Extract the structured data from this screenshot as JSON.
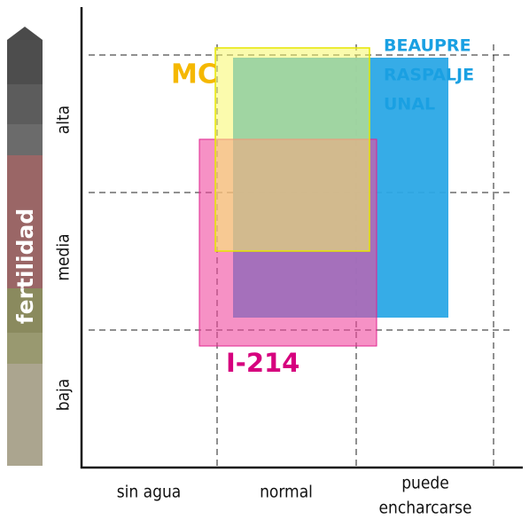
{
  "y_axis": {
    "title": "fertilidad",
    "labels": [
      "alta",
      "media",
      "baja"
    ]
  },
  "x_axis": {
    "labels": [
      [
        "sin agua"
      ],
      [
        "normal"
      ],
      [
        "puede",
        "encharcarse"
      ]
    ]
  },
  "regions": [
    {
      "label": [
        "BEAUPRE",
        "RASPALJE",
        "UNAL"
      ]
    },
    {
      "label": [
        "I-214"
      ]
    },
    {
      "label": [
        "MC"
      ]
    }
  ]
}
